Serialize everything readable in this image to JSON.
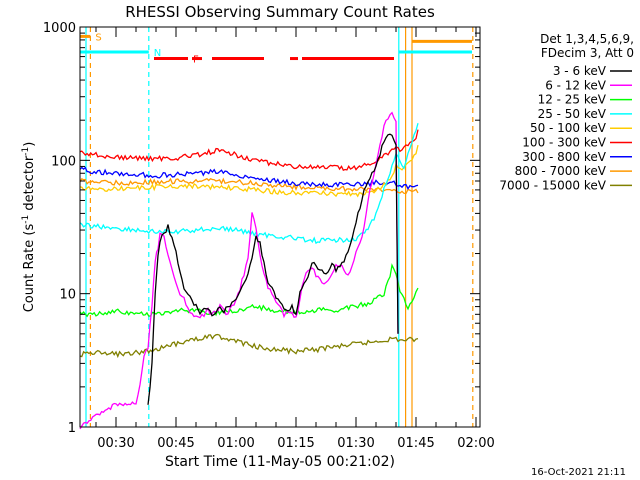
{
  "chart_data": {
    "type": "line",
    "title": "RHESSI Observing Summary Count Rates",
    "xlabel": "Start Time (11-May-05 00:21:02)",
    "ylabel_parts": [
      "Count Rate (s",
      "-1",
      " detector",
      "-1",
      ")"
    ],
    "x_unit": "minutes after 00:00",
    "xlim": [
      21,
      121
    ],
    "ylim": [
      1,
      1000
    ],
    "y_scale": "log",
    "x_ticks": [
      {
        "value": 30,
        "label": "00:30"
      },
      {
        "value": 45,
        "label": "00:45"
      },
      {
        "value": 60,
        "label": "01:00"
      },
      {
        "value": 75,
        "label": "01:15"
      },
      {
        "value": 90,
        "label": "01:30"
      },
      {
        "value": 105,
        "label": "01:45"
      },
      {
        "value": 120,
        "label": "02:00"
      }
    ],
    "y_ticks": [
      {
        "value": 1,
        "label": "1"
      },
      {
        "value": 10,
        "label": "10"
      },
      {
        "value": 100,
        "label": "100"
      },
      {
        "value": 1000,
        "label": "1000"
      }
    ],
    "legend_header": [
      "Det 1,3,4,5,6,9,",
      "FDecim 3, Att 0"
    ],
    "legend_position": "outside-right",
    "series": [
      {
        "name": "3 - 6 keV",
        "color": "#000000",
        "x": [
          38,
          38.5,
          39,
          39.8,
          40.5,
          41,
          42,
          43,
          44,
          45,
          46,
          47,
          48,
          49,
          50,
          51,
          52,
          53,
          54,
          55,
          56,
          57,
          58,
          59,
          60,
          61,
          62,
          63,
          64,
          65,
          66,
          67,
          68,
          69,
          70,
          71,
          72,
          73,
          74,
          75,
          76,
          77,
          78,
          79,
          80,
          81,
          82,
          83,
          84,
          85,
          86,
          87,
          88,
          89,
          90,
          91,
          92,
          93,
          94,
          95,
          96,
          97,
          98,
          99,
          100,
          100.5
        ],
        "y": [
          1.5,
          2,
          3,
          10,
          20,
          25,
          28,
          32,
          26,
          20,
          14,
          11,
          10,
          9,
          8,
          7,
          7.5,
          8,
          7,
          7.5,
          8,
          7.5,
          8,
          8.5,
          9,
          10,
          12,
          14,
          19,
          27,
          24,
          17,
          12,
          11,
          9.5,
          9,
          8,
          7.5,
          8,
          7,
          10,
          12,
          13,
          17,
          16,
          15,
          14,
          15,
          17,
          15,
          16,
          18,
          20,
          26,
          35,
          45,
          60,
          70,
          80,
          90,
          110,
          140,
          160,
          150,
          130,
          5
        ]
      },
      {
        "name": "6 - 12 keV",
        "color": "#ff00ff",
        "x": [
          21,
          30,
          35,
          36,
          37,
          38,
          38.5,
          39,
          39.8,
          40.5,
          41,
          42,
          43,
          44,
          45,
          46,
          47,
          48,
          49,
          50,
          51,
          52,
          53,
          54,
          55,
          56,
          57,
          58,
          59,
          60,
          61,
          62,
          63,
          64,
          65,
          66,
          67,
          68,
          69,
          70,
          71,
          72,
          73,
          74,
          75,
          76,
          77,
          78,
          79,
          80,
          81,
          82,
          83,
          84,
          85,
          86,
          87,
          88,
          89,
          90,
          91,
          92,
          93,
          94,
          95,
          96,
          97,
          98,
          99,
          100,
          100.5
        ],
        "y": [
          1,
          1.5,
          1.5,
          2,
          3.5,
          4,
          6,
          8,
          18,
          22,
          28,
          26,
          20,
          15,
          12,
          10,
          9,
          8,
          7,
          7,
          6.5,
          7,
          7.5,
          7,
          7.5,
          8,
          7.5,
          7,
          8,
          9,
          11,
          14,
          18,
          42,
          30,
          20,
          14,
          11,
          10,
          9,
          8,
          7,
          7.5,
          7,
          6.5,
          9,
          13,
          15,
          16,
          14,
          13,
          12,
          13,
          14,
          16,
          17,
          15,
          14,
          16,
          20,
          24,
          32,
          50,
          70,
          90,
          130,
          180,
          210,
          230,
          190,
          5
        ]
      },
      {
        "name": "12 - 25 keV",
        "color": "#00ff00",
        "x": [
          21,
          25,
          30,
          35,
          40,
          45,
          50,
          55,
          60,
          65,
          70,
          75,
          80,
          85,
          90,
          93,
          95,
          97,
          98,
          99,
          100,
          101,
          102,
          103,
          104,
          105,
          105.5
        ],
        "y": [
          7,
          7,
          7.5,
          7,
          7,
          7.5,
          7.5,
          7.2,
          7.5,
          8,
          7.5,
          7.2,
          7.5,
          7.5,
          8,
          8.5,
          9,
          10,
          12,
          16,
          14,
          10,
          9,
          8,
          9,
          10,
          11
        ]
      },
      {
        "name": "25 - 50 keV",
        "color": "#00ffff",
        "x": [
          21,
          25,
          30,
          35,
          40,
          45,
          50,
          55,
          60,
          65,
          70,
          75,
          80,
          85,
          90,
          93,
          95,
          97,
          99,
          100,
          101,
          102,
          103,
          104,
          105,
          105.5
        ],
        "y": [
          33,
          32,
          31,
          30,
          29,
          29,
          30,
          31,
          30,
          28,
          27,
          26,
          25,
          25,
          26,
          30,
          40,
          60,
          90,
          110,
          100,
          90,
          110,
          140,
          170,
          190
        ]
      },
      {
        "name": "50 - 100 keV",
        "color": "#ffcc00",
        "x": [
          21,
          25,
          30,
          35,
          40,
          45,
          50,
          55,
          60,
          65,
          70,
          75,
          80,
          85,
          90,
          93,
          95,
          97,
          99,
          100,
          101,
          103,
          105,
          105.5
        ],
        "y": [
          62,
          60,
          61,
          62,
          63,
          64,
          64,
          63,
          62,
          60,
          58,
          57,
          57,
          56,
          56,
          57,
          60,
          66,
          75,
          90,
          85,
          95,
          110,
          130
        ]
      },
      {
        "name": "100 - 300 keV",
        "color": "#ff0000",
        "x": [
          21,
          25,
          30,
          35,
          40,
          45,
          50,
          55,
          60,
          65,
          70,
          75,
          80,
          85,
          90,
          93,
          95,
          97,
          99,
          100,
          101,
          103,
          105,
          105.5
        ],
        "y": [
          115,
          110,
          105,
          104,
          103,
          104,
          110,
          118,
          110,
          100,
          94,
          90,
          88,
          88,
          88,
          92,
          100,
          110,
          120,
          130,
          120,
          130,
          150,
          170
        ]
      },
      {
        "name": "300 - 800 keV",
        "color": "#0000ff",
        "x": [
          21,
          25,
          30,
          35,
          40,
          45,
          50,
          55,
          60,
          65,
          70,
          75,
          80,
          85,
          90,
          93,
          95,
          97,
          99,
          100,
          101,
          103,
          105,
          105.5
        ],
        "y": [
          86,
          82,
          80,
          78,
          77,
          78,
          80,
          82,
          78,
          74,
          70,
          67,
          66,
          66,
          66,
          67,
          68,
          68,
          68,
          66,
          64,
          63,
          64,
          65
        ]
      },
      {
        "name": "800 - 7000 keV",
        "color": "#ff9900",
        "x": [
          21,
          25,
          30,
          35,
          40,
          45,
          50,
          55,
          60,
          65,
          70,
          75,
          80,
          85,
          90,
          93,
          95,
          97,
          99,
          100,
          101,
          103,
          105,
          105.5
        ],
        "y": [
          70,
          69,
          68,
          68,
          69,
          70,
          70,
          70,
          69,
          67,
          65,
          63,
          62,
          61,
          61,
          60,
          60,
          60,
          59,
          59,
          59,
          58,
          58,
          57
        ]
      },
      {
        "name": "7000 - 15000 keV",
        "color": "#808000",
        "x": [
          21,
          25,
          30,
          35,
          40,
          45,
          50,
          55,
          60,
          65,
          70,
          75,
          80,
          85,
          90,
          93,
          95,
          97,
          99,
          100,
          101,
          103,
          105,
          105.5
        ],
        "y": [
          3.5,
          3.6,
          3.5,
          3.6,
          3.8,
          4.2,
          4.6,
          4.8,
          4.4,
          4.0,
          3.8,
          3.7,
          3.8,
          4.0,
          4.2,
          4.3,
          4.4,
          4.5,
          4.6,
          4.6,
          4.5,
          4.5,
          4.6,
          4.6
        ]
      }
    ],
    "flag_lines": [
      {
        "label": "S",
        "color": "#ff9900",
        "segments": [
          [
            21,
            23.6
          ]
        ],
        "level": 850
      },
      {
        "label": "N",
        "color": "#00ffff",
        "segments": [
          [
            21,
            38.2
          ],
          [
            100.7,
            119
          ]
        ],
        "level": 650
      },
      {
        "label": "F",
        "color": "#ff0000",
        "segments": [
          [
            39.5,
            48
          ],
          [
            49,
            51.5
          ],
          [
            54,
            67
          ],
          [
            73.5,
            75.5
          ],
          [
            76.5,
            99.5
          ]
        ],
        "level": 580
      },
      {
        "label": "",
        "color": "#ff9900",
        "segments": [
          [
            104,
            119
          ]
        ],
        "level": 780
      }
    ],
    "vertical_markers": [
      {
        "x": 22.5,
        "color": "#00ffff",
        "dash": false
      },
      {
        "x": 23.6,
        "color": "#ff9900",
        "dash": true
      },
      {
        "x": 38.2,
        "color": "#00ffff",
        "dash": true
      },
      {
        "x": 100.7,
        "color": "#00ffff",
        "dash": false
      },
      {
        "x": 102.4,
        "color": "#ff9900",
        "dash": false
      },
      {
        "x": 104.0,
        "color": "#ff9900",
        "dash": false
      },
      {
        "x": 119.2,
        "color": "#ff9900",
        "dash": true
      }
    ]
  },
  "footer": {
    "date_stamp": "16-Oct-2021 21:11"
  }
}
